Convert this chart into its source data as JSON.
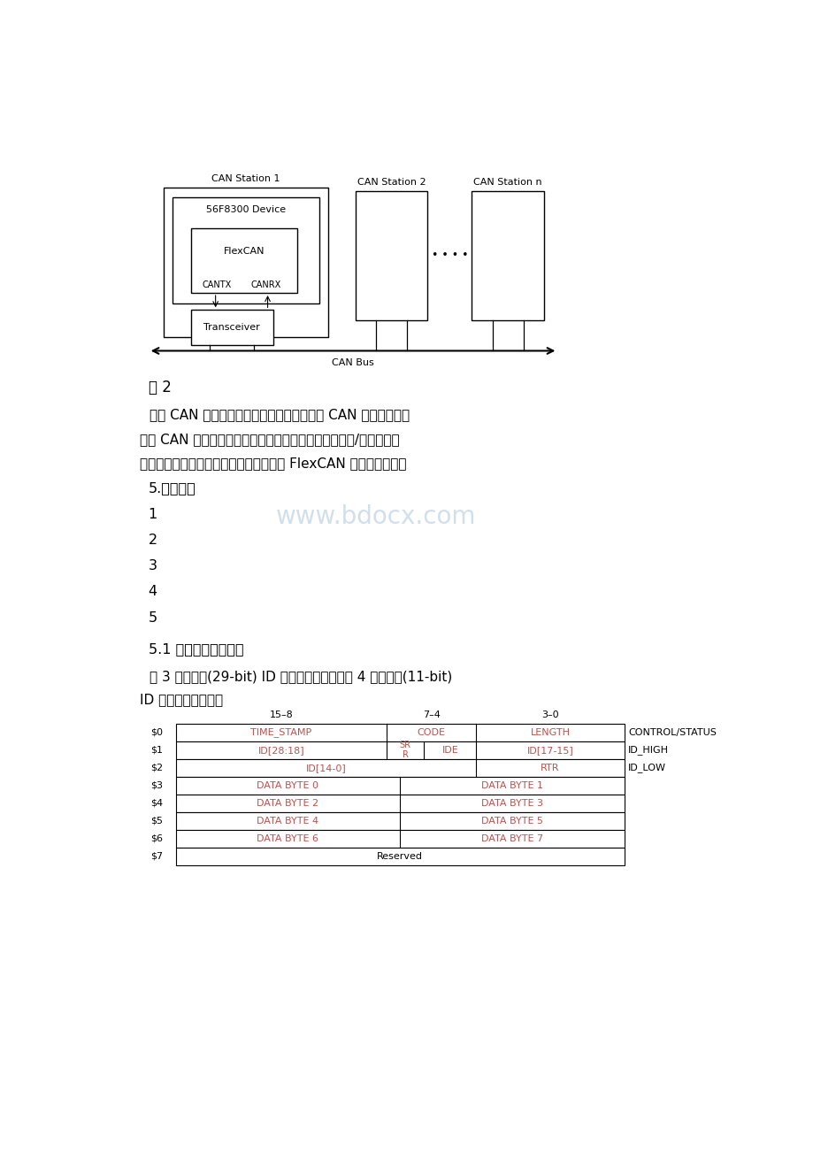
{
  "bg_color": "#ffffff",
  "text_color": "#000000",
  "red_color": "#c0504d",
  "para1": "图 2",
  "para2_line1": "每个 CAN 站点物理上通过一个收发器连接到 CAN 总线，收发器",
  "para2_line2": "提供 CAN 总线上通讯所需的传输驱动、波形，以及接受/比较等功能",
  "para2_line3": "，还提供保护以预防不良的总线或站点对 FlexCAN 模块造成损坏。",
  "section5": "5.信息缓存",
  "watermark": "www.bdocx.com",
  "section51": "5.1 信息缓存器结构。",
  "para3_line1": "图 3 说明扩展(29-bit) ID 信息缓存器结构；图 4 说明标准(11-bit)",
  "para3_line2": "ID 信息缓存器结构。"
}
